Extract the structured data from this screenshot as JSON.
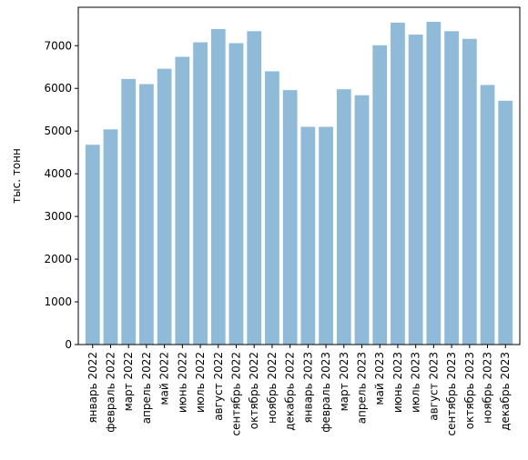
{
  "chart_data": {
    "type": "bar",
    "title": "",
    "xlabel": "",
    "ylabel": "тыс. тонн",
    "ylim": [
      0,
      7900
    ],
    "yticks": [
      0,
      1000,
      2000,
      3000,
      4000,
      5000,
      6000,
      7000
    ],
    "ytick_labels": [
      "0",
      "1000",
      "2000",
      "3000",
      "4000",
      "5000",
      "6000",
      "7000"
    ],
    "grid": false,
    "legend": "none",
    "bar_color": "#1f77b4",
    "bar_opacity": 0.5,
    "categories": [
      "январь 2022",
      "февраль 2022",
      "март 2022",
      "апрель 2022",
      "май 2022",
      "июнь 2022",
      "июль 2022",
      "август 2022",
      "сентябрь 2022",
      "октябрь 2022",
      "ноябрь 2022",
      "декабрь 2022",
      "январь 2023",
      "февраль 2023",
      "март 2023",
      "апрель 2023",
      "май 2023",
      "июнь 2023",
      "июль 2023",
      "август 2023",
      "сентябрь 2023",
      "октябрь 2023",
      "ноябрь 2023",
      "декабрь 2023"
    ],
    "values": [
      4680,
      5040,
      6220,
      6100,
      6460,
      6740,
      7080,
      7390,
      7060,
      7340,
      6400,
      5960,
      5100,
      5100,
      5980,
      5840,
      7010,
      7540,
      7260,
      7560,
      7340,
      7160,
      6080,
      5710
    ]
  }
}
